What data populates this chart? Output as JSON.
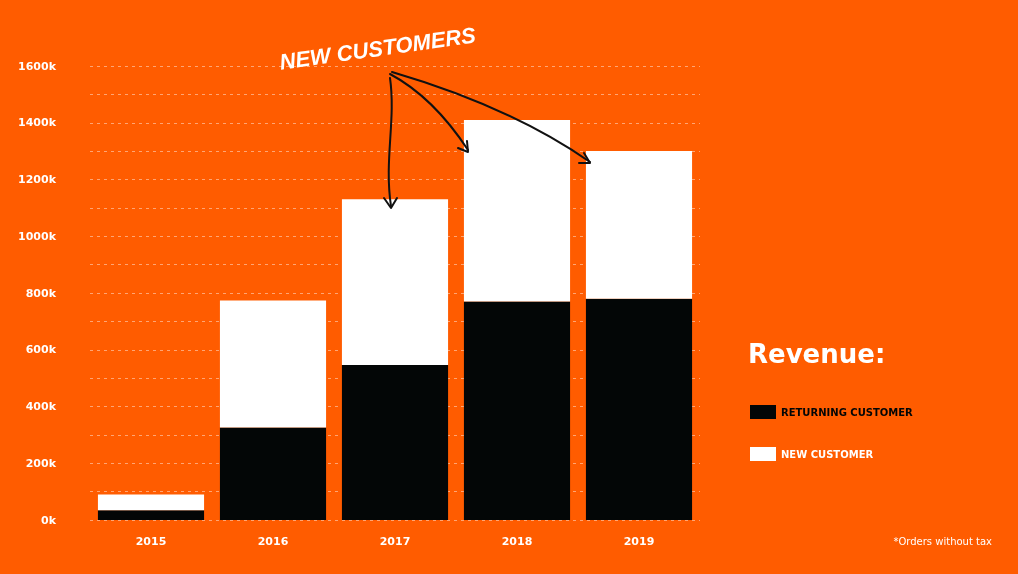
{
  "chart_data": {
    "type": "bar",
    "stacked": true,
    "legend_title": "Revenue:",
    "legend": "right",
    "grid": "y",
    "categories": [
      "2015",
      "2016",
      "2017",
      "2018",
      "2019"
    ],
    "series": [
      {
        "name": "RETURNING CUSTOMER",
        "color": "#030606",
        "values": [
          34000,
          326000,
          546000,
          770000,
          780000
        ]
      },
      {
        "name": "NEW CUSTOMER",
        "color": "#ffffff",
        "values": [
          56000,
          448000,
          584000,
          640000,
          520000
        ]
      }
    ],
    "ylim": [
      0,
      1600000
    ],
    "yticks": [
      {
        "value": 0,
        "label": "0k"
      },
      {
        "value": 100000,
        "label": null
      },
      {
        "value": 200000,
        "label": "200k"
      },
      {
        "value": 300000,
        "label": null
      },
      {
        "value": 400000,
        "label": "400k"
      },
      {
        "value": 500000,
        "label": null
      },
      {
        "value": 600000,
        "label": "600k"
      },
      {
        "value": 700000,
        "label": null
      },
      {
        "value": 800000,
        "label": "800k"
      },
      {
        "value": 900000,
        "label": null
      },
      {
        "value": 1000000,
        "label": "1000k"
      },
      {
        "value": 1100000,
        "label": null
      },
      {
        "value": 1200000,
        "label": "1200k"
      },
      {
        "value": 1300000,
        "label": null
      },
      {
        "value": 1400000,
        "label": "1400k"
      },
      {
        "value": 1500000,
        "label": null
      },
      {
        "value": 1600000,
        "label": "1600k"
      }
    ],
    "annotations": [
      "NEW CUSTOMERS",
      "*Orders without tax"
    ]
  }
}
